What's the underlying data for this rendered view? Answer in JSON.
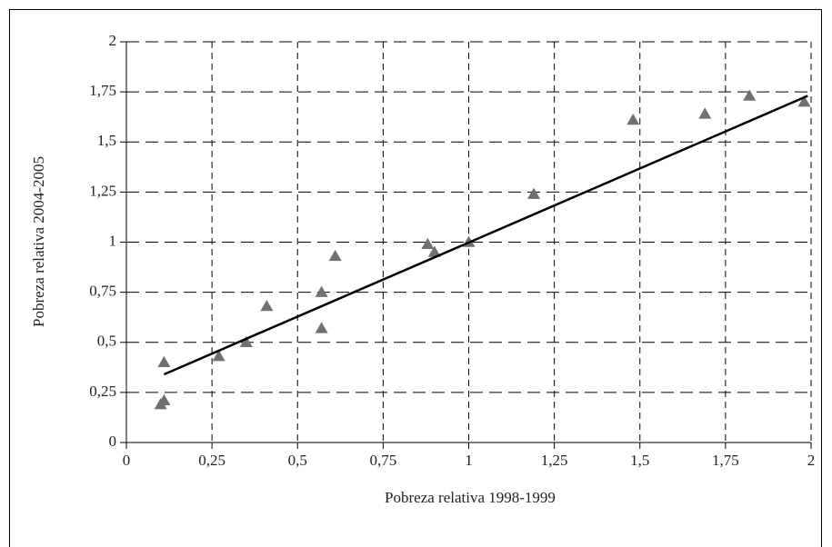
{
  "chart_data": {
    "type": "scatter",
    "x_label": "Pobreza relativa 1998-1999",
    "y_label": "Pobreza relativa 2004-2005",
    "color": "#707070",
    "x": [
      0.11,
      0.1,
      0.11,
      0.27,
      0.35,
      0.41,
      0.57,
      0.57,
      0.61,
      0.88,
      0.9,
      1.0,
      1.19,
      1.48,
      1.69,
      1.82,
      1.98
    ],
    "values": [
      0.4,
      0.19,
      0.21,
      0.43,
      0.5,
      0.68,
      0.75,
      0.57,
      0.93,
      0.99,
      0.95,
      1.0,
      1.24,
      1.61,
      1.64,
      1.73,
      1.7
    ],
    "trendline": {
      "x": [
        0.11,
        1.99
      ],
      "values": [
        0.34,
        1.73
      ],
      "color": "#000000"
    },
    "xlim": [
      0,
      2
    ],
    "ylim": [
      0,
      2
    ],
    "xticks": [
      0,
      {
        "value": 0.25,
        "label": "0,25"
      },
      {
        "value": 0.5,
        "label": "0,5"
      },
      {
        "value": 0.75,
        "label": "0,75"
      },
      1,
      {
        "value": 1.25,
        "label": "1,25"
      },
      {
        "value": 1.5,
        "label": "1,5"
      },
      {
        "value": 1.75,
        "label": "1,75"
      },
      2
    ],
    "yticks": [
      0,
      {
        "value": 0.25,
        "label": "0,25"
      },
      {
        "value": 0.5,
        "label": "0,5"
      },
      {
        "value": 0.75,
        "label": "0,75"
      },
      1,
      {
        "value": 1.25,
        "label": "1,25"
      },
      {
        "value": 1.5,
        "label": "1,5"
      },
      {
        "value": 1.75,
        "label": "1,75"
      },
      2
    ],
    "grid": true
  }
}
